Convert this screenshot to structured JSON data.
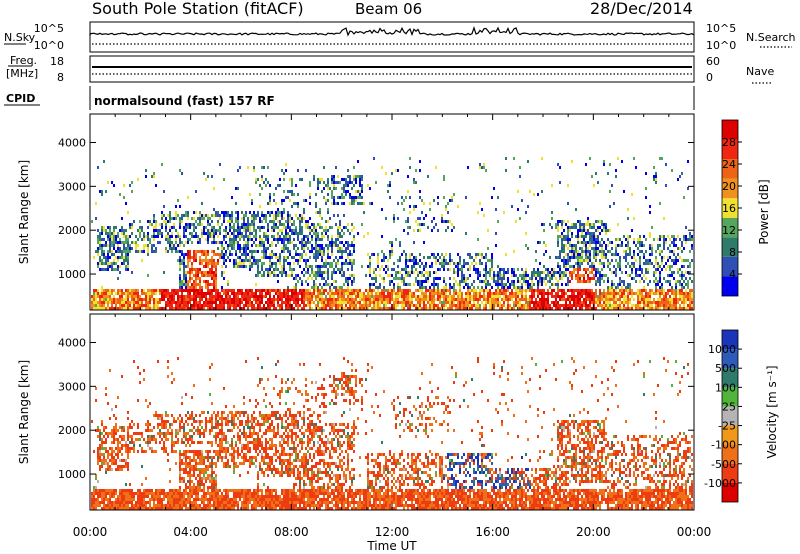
{
  "header": {
    "station": "South Pole Station (fitACF)",
    "beam": "Beam 06",
    "date": "28/Dec/2014"
  },
  "noise_panel": {
    "left_label": "N.Sky",
    "left_ticks": [
      "10^5",
      "10^0"
    ],
    "right_ticks": [
      "10^5",
      "10^0"
    ],
    "right_label": "N.Search"
  },
  "freq_panel": {
    "left_label_line1": "Freq.",
    "left_label_line2": "[MHz]",
    "left_ticks": [
      "18",
      "8"
    ],
    "right_ticks": [
      "60",
      "0"
    ],
    "right_label": "Nave"
  },
  "cpid": {
    "label": "CPID",
    "text": "normalsound (fast) 157 RF"
  },
  "colors": {
    "power": [
      "#0000ee",
      "#2e4fb4",
      "#2f7b6b",
      "#56a55c",
      "#f0e030",
      "#f0901e",
      "#ee6416",
      "#ee2612",
      "#dd0000"
    ],
    "velocity": [
      "#1a36b8",
      "#2e5ab8",
      "#2f7b6b",
      "#52b43c",
      "#b4b4b4",
      "#f09818",
      "#f07018",
      "#ee3c12",
      "#dd0000"
    ]
  },
  "chart_data": [
    {
      "type": "heatmap",
      "title": "",
      "xlabel": "Time UT",
      "ylabel": "Slant Range [km]",
      "x_ticks": [
        "00:00",
        "04:00",
        "08:00",
        "12:00",
        "16:00",
        "20:00",
        "00:00"
      ],
      "y_ticks": [
        1000,
        2000,
        3000,
        4000
      ],
      "ylim": [
        180,
        4650
      ],
      "colorbar": {
        "label": "Power [dB]",
        "ticks": [
          4,
          8,
          12,
          16,
          20,
          24,
          28
        ],
        "range": [
          0,
          32
        ]
      }
    },
    {
      "type": "heatmap",
      "title": "",
      "xlabel": "Time UT",
      "ylabel": "Slant Range [km]",
      "x_ticks": [
        "00:00",
        "04:00",
        "08:00",
        "12:00",
        "16:00",
        "20:00",
        "00:00"
      ],
      "y_ticks": [
        1000,
        2000,
        3000,
        4000
      ],
      "ylim": [
        180,
        4650
      ],
      "colorbar": {
        "label": "Velocity [m s⁻¹]",
        "ticks": [
          "1000",
          "500",
          "100",
          "25",
          "-25",
          "-100",
          "-500",
          "-1000"
        ]
      }
    }
  ],
  "axis": {
    "xlabel": "Time UT"
  }
}
